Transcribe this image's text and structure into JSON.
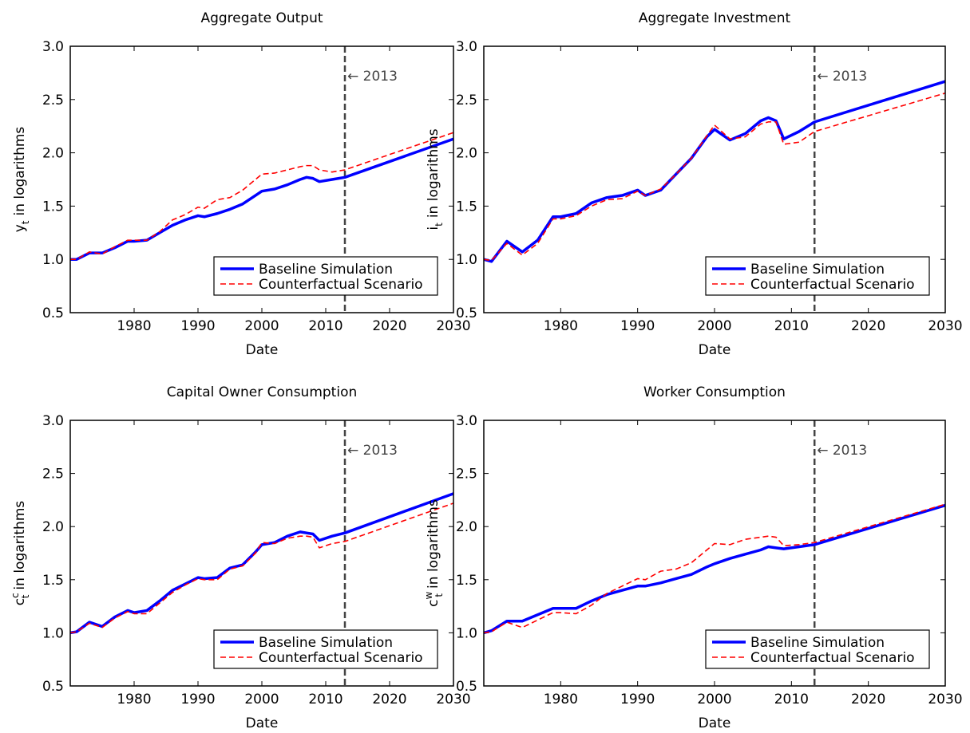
{
  "chart_data": [
    {
      "type": "line",
      "title": "Aggregate Output",
      "ylabel": {
        "symbol": "y",
        "sub": "t",
        "text": "in logarithms"
      },
      "xlabel": "Date",
      "x": [
        1970,
        1971,
        1973,
        1975,
        1977,
        1979,
        1980,
        1982,
        1984,
        1986,
        1988,
        1990,
        1991,
        1993,
        1995,
        1997,
        1999,
        2000,
        2002,
        2004,
        2006,
        2007,
        2008,
        2009,
        2011,
        2013,
        2030
      ],
      "series": [
        {
          "name": "Baseline Simulation",
          "color": "#0000ff",
          "values": [
            1.0,
            1.0,
            1.06,
            1.06,
            1.11,
            1.17,
            1.17,
            1.18,
            1.25,
            1.32,
            1.37,
            1.41,
            1.4,
            1.43,
            1.47,
            1.52,
            1.6,
            1.64,
            1.66,
            1.7,
            1.75,
            1.77,
            1.76,
            1.73,
            1.75,
            1.77,
            2.13
          ]
        },
        {
          "name": "Counterfactual Scenario",
          "color": "#ff0000",
          "values": [
            1.0,
            1.0,
            1.07,
            1.05,
            1.12,
            1.18,
            1.18,
            1.18,
            1.26,
            1.37,
            1.42,
            1.49,
            1.48,
            1.56,
            1.58,
            1.65,
            1.75,
            1.8,
            1.81,
            1.84,
            1.87,
            1.88,
            1.88,
            1.84,
            1.82,
            1.84,
            2.19
          ]
        }
      ],
      "xlim": [
        1970,
        2030
      ],
      "xticks": [
        1980,
        1990,
        2000,
        2010,
        2020,
        2030
      ],
      "ylim": [
        0.5,
        3.0
      ],
      "yticks": [
        0.5,
        {
          "value": 1,
          "label": "1.0"
        },
        1.5,
        {
          "value": 2,
          "label": "2.0"
        },
        2.5,
        {
          "value": 3,
          "label": "3.0"
        }
      ],
      "annotation": {
        "x": 2013,
        "label": "← 2013"
      },
      "legend": "lower right",
      "grid": false
    },
    {
      "type": "line",
      "title": "Aggregate Investment",
      "ylabel": {
        "symbol": "i",
        "sub": "t",
        "text": "in logarithms"
      },
      "xlabel": "Date",
      "x": [
        1970,
        1971,
        1973,
        1975,
        1977,
        1979,
        1980,
        1982,
        1984,
        1986,
        1988,
        1990,
        1991,
        1993,
        1995,
        1997,
        1999,
        2000,
        2002,
        2004,
        2006,
        2007,
        2008,
        2009,
        2011,
        2013,
        2030
      ],
      "series": [
        {
          "name": "Baseline Simulation",
          "color": "#0000ff",
          "values": [
            1.0,
            0.98,
            1.17,
            1.07,
            1.18,
            1.4,
            1.4,
            1.43,
            1.53,
            1.58,
            1.6,
            1.65,
            1.6,
            1.65,
            1.8,
            1.95,
            2.15,
            2.22,
            2.12,
            2.18,
            2.3,
            2.33,
            2.3,
            2.13,
            2.2,
            2.29,
            2.67
          ]
        },
        {
          "name": "Counterfactual Scenario",
          "color": "#ff0000",
          "values": [
            1.0,
            0.99,
            1.15,
            1.04,
            1.15,
            1.38,
            1.38,
            1.41,
            1.5,
            1.56,
            1.57,
            1.64,
            1.6,
            1.66,
            1.8,
            1.95,
            2.16,
            2.26,
            2.13,
            2.15,
            2.27,
            2.29,
            2.29,
            2.08,
            2.1,
            2.2,
            2.56
          ]
        }
      ],
      "xlim": [
        1970,
        2030
      ],
      "xticks": [
        1980,
        1990,
        2000,
        2010,
        2020,
        2030
      ],
      "ylim": [
        0.5,
        3.0
      ],
      "yticks": [
        0.5,
        {
          "value": 1,
          "label": "1.0"
        },
        1.5,
        {
          "value": 2,
          "label": "2.0"
        },
        2.5,
        {
          "value": 3,
          "label": "3.0"
        }
      ],
      "annotation": {
        "x": 2013,
        "label": "← 2013"
      },
      "legend": "lower right",
      "grid": false
    },
    {
      "type": "line",
      "title": "Capital Owner Consumption",
      "ylabel": {
        "symbol": "c",
        "sup": "c",
        "sub": "t",
        "text": "in logarithms"
      },
      "xlabel": "Date",
      "x": [
        1970,
        1971,
        1973,
        1975,
        1977,
        1979,
        1980,
        1982,
        1984,
        1986,
        1988,
        1990,
        1991,
        1993,
        1995,
        1997,
        1999,
        2000,
        2002,
        2004,
        2006,
        2007,
        2008,
        2009,
        2011,
        2013,
        2030
      ],
      "series": [
        {
          "name": "Baseline Simulation",
          "color": "#0000ff",
          "values": [
            1.0,
            1.01,
            1.1,
            1.06,
            1.15,
            1.21,
            1.19,
            1.21,
            1.3,
            1.4,
            1.46,
            1.52,
            1.51,
            1.52,
            1.61,
            1.64,
            1.76,
            1.83,
            1.85,
            1.91,
            1.95,
            1.94,
            1.93,
            1.87,
            1.91,
            1.94,
            2.31
          ]
        },
        {
          "name": "Counterfactual Scenario",
          "color": "#ff0000",
          "values": [
            1.0,
            1.01,
            1.09,
            1.05,
            1.14,
            1.2,
            1.18,
            1.18,
            1.28,
            1.38,
            1.45,
            1.51,
            1.5,
            1.5,
            1.6,
            1.63,
            1.75,
            1.85,
            1.84,
            1.89,
            1.91,
            1.91,
            1.9,
            1.8,
            1.84,
            1.86,
            2.22
          ]
        }
      ],
      "xlim": [
        1970,
        2030
      ],
      "xticks": [
        1980,
        1990,
        2000,
        2010,
        2020,
        2030
      ],
      "ylim": [
        0.5,
        3.0
      ],
      "yticks": [
        0.5,
        {
          "value": 1,
          "label": "1.0"
        },
        1.5,
        {
          "value": 2,
          "label": "2.0"
        },
        2.5,
        {
          "value": 3,
          "label": "3.0"
        }
      ],
      "annotation": {
        "x": 2013,
        "label": "← 2013"
      },
      "legend": "lower right",
      "grid": false
    },
    {
      "type": "line",
      "title": "Worker Consumption",
      "ylabel": {
        "symbol": "c",
        "sup": "w",
        "sub": "t",
        "text": "in logarithms"
      },
      "xlabel": "Date",
      "x": [
        1970,
        1971,
        1973,
        1975,
        1977,
        1979,
        1980,
        1982,
        1984,
        1986,
        1988,
        1990,
        1991,
        1993,
        1995,
        1997,
        1999,
        2000,
        2002,
        2004,
        2006,
        2007,
        2008,
        2009,
        2011,
        2013,
        2030
      ],
      "series": [
        {
          "name": "Baseline Simulation",
          "color": "#0000ff",
          "values": [
            1.0,
            1.02,
            1.11,
            1.11,
            1.17,
            1.23,
            1.23,
            1.23,
            1.3,
            1.36,
            1.4,
            1.44,
            1.44,
            1.47,
            1.51,
            1.55,
            1.62,
            1.65,
            1.7,
            1.74,
            1.78,
            1.81,
            1.8,
            1.79,
            1.81,
            1.83,
            2.2
          ]
        },
        {
          "name": "Counterfactual Scenario",
          "color": "#ff0000",
          "values": [
            1.0,
            1.01,
            1.1,
            1.05,
            1.12,
            1.19,
            1.19,
            1.18,
            1.26,
            1.37,
            1.44,
            1.51,
            1.5,
            1.58,
            1.6,
            1.66,
            1.78,
            1.84,
            1.83,
            1.88,
            1.9,
            1.91,
            1.9,
            1.82,
            1.83,
            1.85,
            2.21
          ]
        }
      ],
      "xlim": [
        1970,
        2030
      ],
      "xticks": [
        1980,
        1990,
        2000,
        2010,
        2020,
        2030
      ],
      "ylim": [
        0.5,
        3.0
      ],
      "yticks": [
        0.5,
        {
          "value": 1,
          "label": "1.0"
        },
        1.5,
        {
          "value": 2,
          "label": "2.0"
        },
        2.5,
        {
          "value": 3,
          "label": "3.0"
        }
      ],
      "annotation": {
        "x": 2013,
        "label": "← 2013"
      },
      "legend": "lower right",
      "grid": false
    }
  ]
}
